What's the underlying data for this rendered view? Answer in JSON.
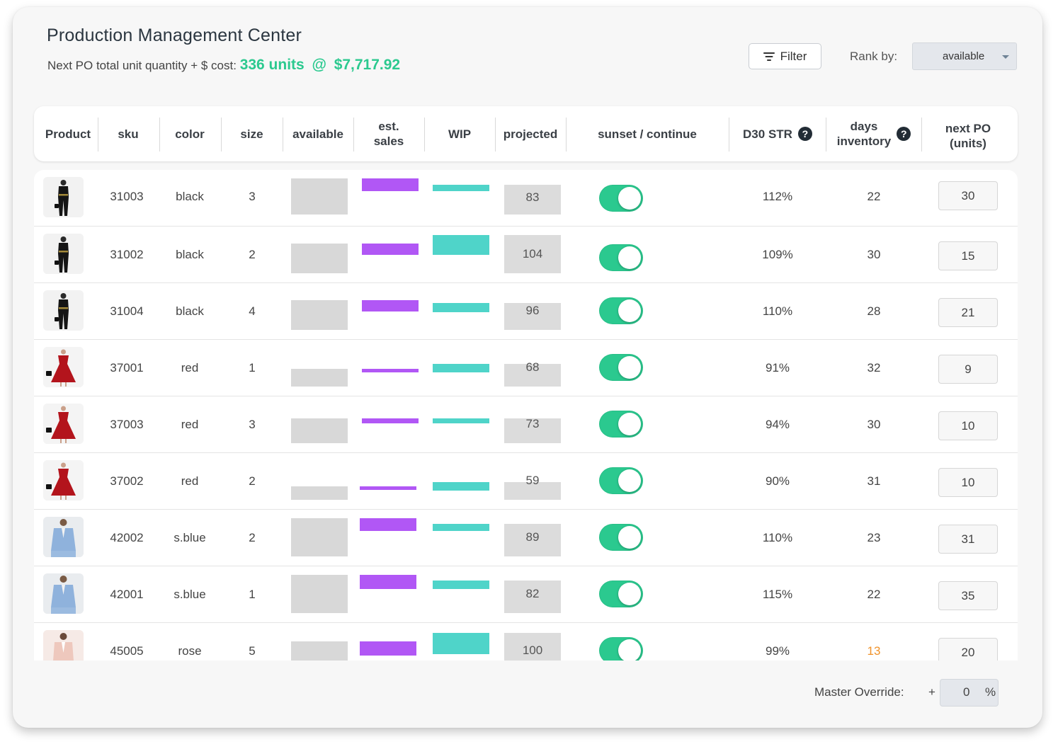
{
  "header": {
    "title": "Production Management Center",
    "subtitle_prefix": "Next PO total unit quantity + $ cost:",
    "total_units": "336 units",
    "at_symbol": "@",
    "total_cost": "$7,717.92",
    "filter_label": "Filter",
    "rank_label": "Rank by:",
    "rank_value": "available"
  },
  "columns": {
    "product": "Product",
    "sku": "sku",
    "color": "color",
    "size": "size",
    "available": "available",
    "est_sales_1": "est.",
    "est_sales_2": "sales",
    "wip": "WIP",
    "projected": "projected",
    "sunset": "sunset / continue",
    "d30": "D30 STR",
    "days_1": "days",
    "days_2": "inventory",
    "next_po_1": "next PO",
    "next_po_2": "(units)",
    "help_glyph": "?"
  },
  "rows": [
    {
      "sku": "31003",
      "color": "black",
      "size": "3",
      "projected": "83",
      "continue": true,
      "d30": "112%",
      "days": "22",
      "next_po": "30",
      "product_icon": "black-jumpsuit"
    },
    {
      "sku": "31002",
      "color": "black",
      "size": "2",
      "projected": "104",
      "continue": true,
      "d30": "109%",
      "days": "30",
      "next_po": "15",
      "product_icon": "black-jumpsuit"
    },
    {
      "sku": "31004",
      "color": "black",
      "size": "4",
      "projected": "96",
      "continue": true,
      "d30": "110%",
      "days": "28",
      "next_po": "21",
      "product_icon": "black-jumpsuit"
    },
    {
      "sku": "37001",
      "color": "red",
      "size": "1",
      "projected": "68",
      "continue": true,
      "d30": "91%",
      "days": "32",
      "next_po": "9",
      "product_icon": "red-dress"
    },
    {
      "sku": "37003",
      "color": "red",
      "size": "3",
      "projected": "73",
      "continue": true,
      "d30": "94%",
      "days": "30",
      "next_po": "10",
      "product_icon": "red-dress"
    },
    {
      "sku": "37002",
      "color": "red",
      "size": "2",
      "projected": "59",
      "continue": true,
      "d30": "90%",
      "days": "31",
      "next_po": "10",
      "product_icon": "red-dress"
    },
    {
      "sku": "42002",
      "color": "s.blue",
      "size": "2",
      "projected": "89",
      "continue": true,
      "d30": "110%",
      "days": "23",
      "next_po": "31",
      "product_icon": "blue-blazer"
    },
    {
      "sku": "42001",
      "color": "s.blue",
      "size": "1",
      "projected": "82",
      "continue": true,
      "d30": "115%",
      "days": "22",
      "next_po": "35",
      "product_icon": "blue-blazer"
    },
    {
      "sku": "45005",
      "color": "rose",
      "size": "5",
      "projected": "100",
      "continue": true,
      "d30": "99%",
      "days": "13",
      "days_color": "#f0932b",
      "next_po": "20",
      "product_icon": "rose-suit"
    }
  ],
  "footer": {
    "master_override_label": "Master Override:",
    "plus": "+",
    "override_value": "0",
    "percent": "%"
  },
  "colors": {
    "accent_green": "#2bc98f",
    "sales_purple": "#b157f5",
    "wip_teal": "#4fd4c9",
    "warning_orange": "#f0932b"
  }
}
